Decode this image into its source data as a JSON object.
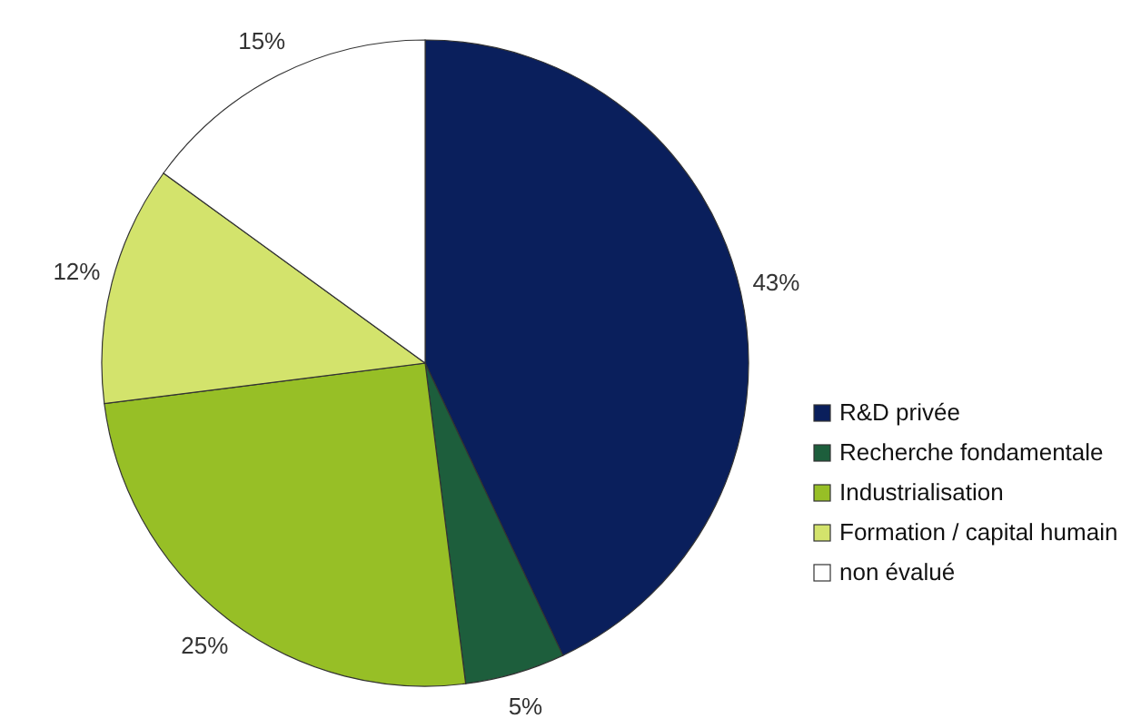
{
  "chart_data": {
    "type": "pie",
    "categories": [
      "R&D privée",
      "Recherche fondamentale",
      "Industrialisation",
      "Formation / capital humain",
      "non évalué"
    ],
    "values": [
      43,
      5,
      25,
      12,
      15
    ],
    "colors": [
      "#0a1f5c",
      "#1d5e3c",
      "#97bf26",
      "#d3e36c",
      "#ffffff"
    ],
    "value_labels": [
      "43%",
      "5%",
      "25%",
      "12%",
      "15%"
    ],
    "legend": "right"
  }
}
